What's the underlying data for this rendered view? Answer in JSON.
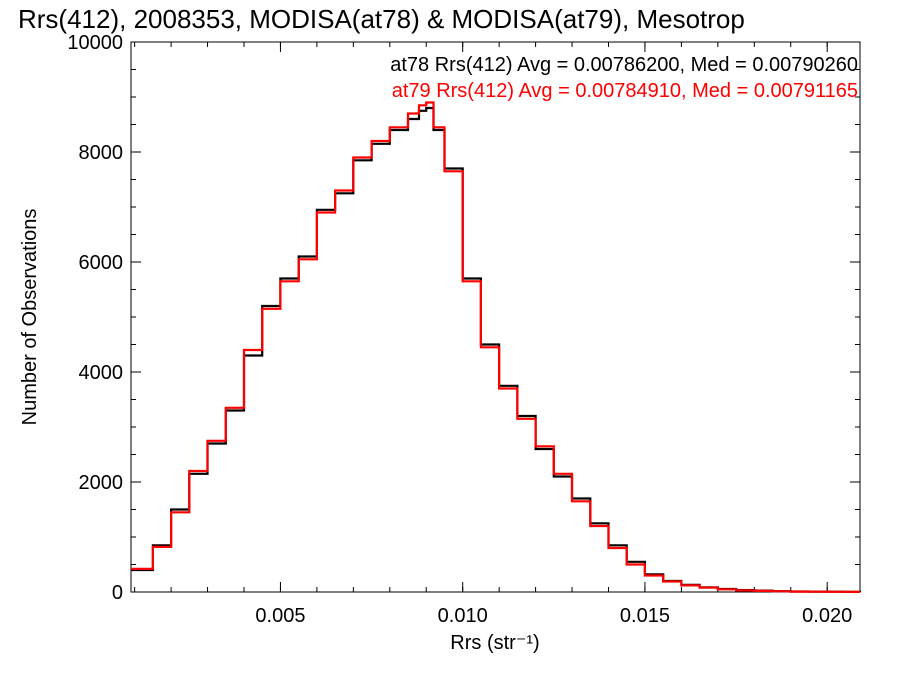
{
  "chart_data": {
    "type": "line",
    "title": "Rrs(412), 2008353, MODISA(at78) & MODISA(at79), Mesotrop",
    "xlabel": "Rrs (str⁻¹)",
    "ylabel": "Number of Observations",
    "xlim": [
      0.0009,
      0.0209
    ],
    "ylim": [
      0,
      10000
    ],
    "x_ticks": [
      {
        "value": 0.005,
        "label": "0.005"
      },
      {
        "value": 0.01,
        "label": "0.010"
      },
      {
        "value": 0.015,
        "label": "0.015"
      },
      {
        "value": 0.02,
        "label": "0.020"
      }
    ],
    "y_ticks": [
      {
        "value": 0,
        "label": "0"
      },
      {
        "value": 2000,
        "label": "2000"
      },
      {
        "value": 4000,
        "label": "4000"
      },
      {
        "value": 6000,
        "label": "6000"
      },
      {
        "value": 8000,
        "label": "8000"
      },
      {
        "value": 10000,
        "label": "10000"
      }
    ],
    "grid": false,
    "legend_position": "top-right",
    "annotations": [
      {
        "text": "at78 Rrs(412) Avg = 0.00786200, Med = 0.00790260",
        "color": "#000000"
      },
      {
        "text": "at79 Rrs(412) Avg = 0.00784910, Med = 0.00791165",
        "color": "#ff0000"
      }
    ],
    "series": [
      {
        "color": "#000000",
        "x": [
          0.0009,
          0.0015,
          0.002,
          0.0025,
          0.003,
          0.0035,
          0.004,
          0.0045,
          0.005,
          0.0055,
          0.006,
          0.0065,
          0.007,
          0.0075,
          0.008,
          0.0085,
          0.0088,
          0.009,
          0.0092,
          0.0095,
          0.01,
          0.0105,
          0.011,
          0.0115,
          0.012,
          0.0125,
          0.013,
          0.0135,
          0.014,
          0.0145,
          0.015,
          0.0155,
          0.016,
          0.0165,
          0.017,
          0.0175,
          0.018,
          0.0185,
          0.019,
          0.0195,
          0.02,
          0.0205,
          0.0209
        ],
        "y": [
          400,
          850,
          1500,
          2150,
          2700,
          3300,
          4300,
          5200,
          5700,
          6100,
          6950,
          7250,
          7850,
          8150,
          8400,
          8600,
          8750,
          8800,
          8400,
          7700,
          5700,
          4500,
          3750,
          3200,
          2600,
          2100,
          1700,
          1250,
          850,
          550,
          320,
          200,
          130,
          85,
          55,
          35,
          25,
          15,
          10,
          8,
          5,
          3,
          2
        ]
      },
      {
        "color": "#ff0000",
        "x": [
          0.0009,
          0.0015,
          0.002,
          0.0025,
          0.003,
          0.0035,
          0.004,
          0.0045,
          0.005,
          0.0055,
          0.006,
          0.0065,
          0.007,
          0.0075,
          0.008,
          0.0085,
          0.0088,
          0.009,
          0.0092,
          0.0095,
          0.01,
          0.0105,
          0.011,
          0.0115,
          0.012,
          0.0125,
          0.013,
          0.0135,
          0.014,
          0.0145,
          0.015,
          0.0155,
          0.016,
          0.0165,
          0.017,
          0.0175,
          0.018,
          0.0185,
          0.019,
          0.0195,
          0.02,
          0.0205,
          0.0209
        ],
        "y": [
          420,
          820,
          1450,
          2200,
          2750,
          3350,
          4400,
          5150,
          5650,
          6050,
          6900,
          7300,
          7900,
          8200,
          8450,
          8700,
          8850,
          8900,
          8450,
          7650,
          5650,
          4450,
          3700,
          3150,
          2650,
          2150,
          1650,
          1200,
          800,
          500,
          300,
          190,
          120,
          80,
          50,
          30,
          20,
          12,
          8,
          6,
          4,
          2,
          1
        ]
      }
    ]
  }
}
